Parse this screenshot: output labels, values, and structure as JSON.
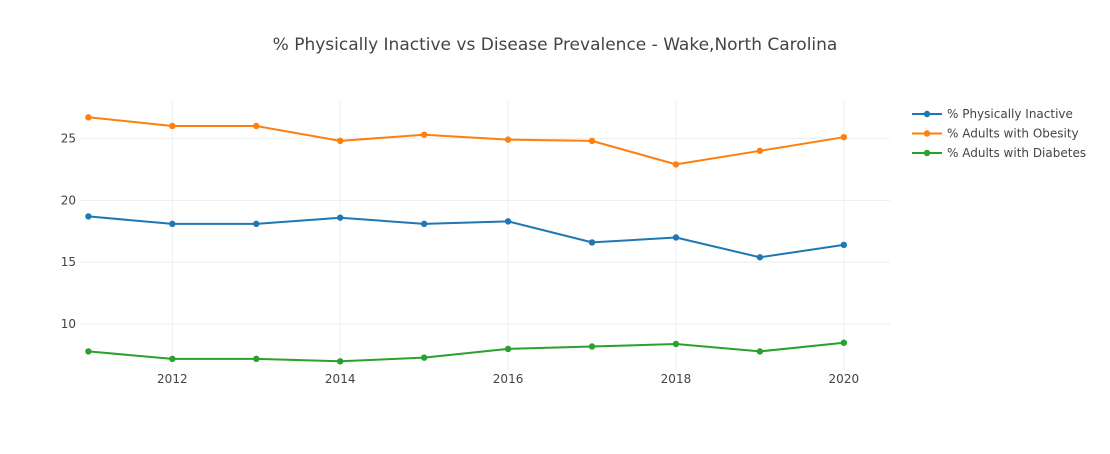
{
  "chart_data": {
    "type": "line",
    "title": "% Physically Inactive vs Disease Prevalence - Wake,North Carolina",
    "xlabel": "",
    "ylabel": "",
    "x": [
      2011,
      2012,
      2013,
      2014,
      2015,
      2016,
      2017,
      2018,
      2019,
      2020
    ],
    "xlim": [
      2010.9,
      2020.55
    ],
    "ylim": [
      6.3,
      28.1
    ],
    "x_ticks": [
      2012,
      2014,
      2016,
      2018,
      2020
    ],
    "y_ticks": [
      10,
      15,
      20,
      25
    ],
    "grid": true,
    "legend_position": "top-right",
    "series": [
      {
        "name": "% Physically Inactive",
        "color": "#1f77b4",
        "values": [
          18.7,
          18.1,
          18.1,
          18.6,
          18.1,
          18.3,
          16.6,
          17.0,
          15.4,
          16.4
        ]
      },
      {
        "name": "% Adults with Obesity",
        "color": "#ff7f0e",
        "values": [
          26.7,
          26.0,
          26.0,
          24.8,
          25.3,
          24.9,
          24.8,
          22.9,
          24.0,
          25.1
        ]
      },
      {
        "name": "% Adults with Diabetes",
        "color": "#2ca02c",
        "values": [
          7.8,
          7.2,
          7.2,
          7.0,
          7.3,
          8.0,
          8.2,
          8.4,
          7.8,
          8.5
        ]
      }
    ]
  }
}
